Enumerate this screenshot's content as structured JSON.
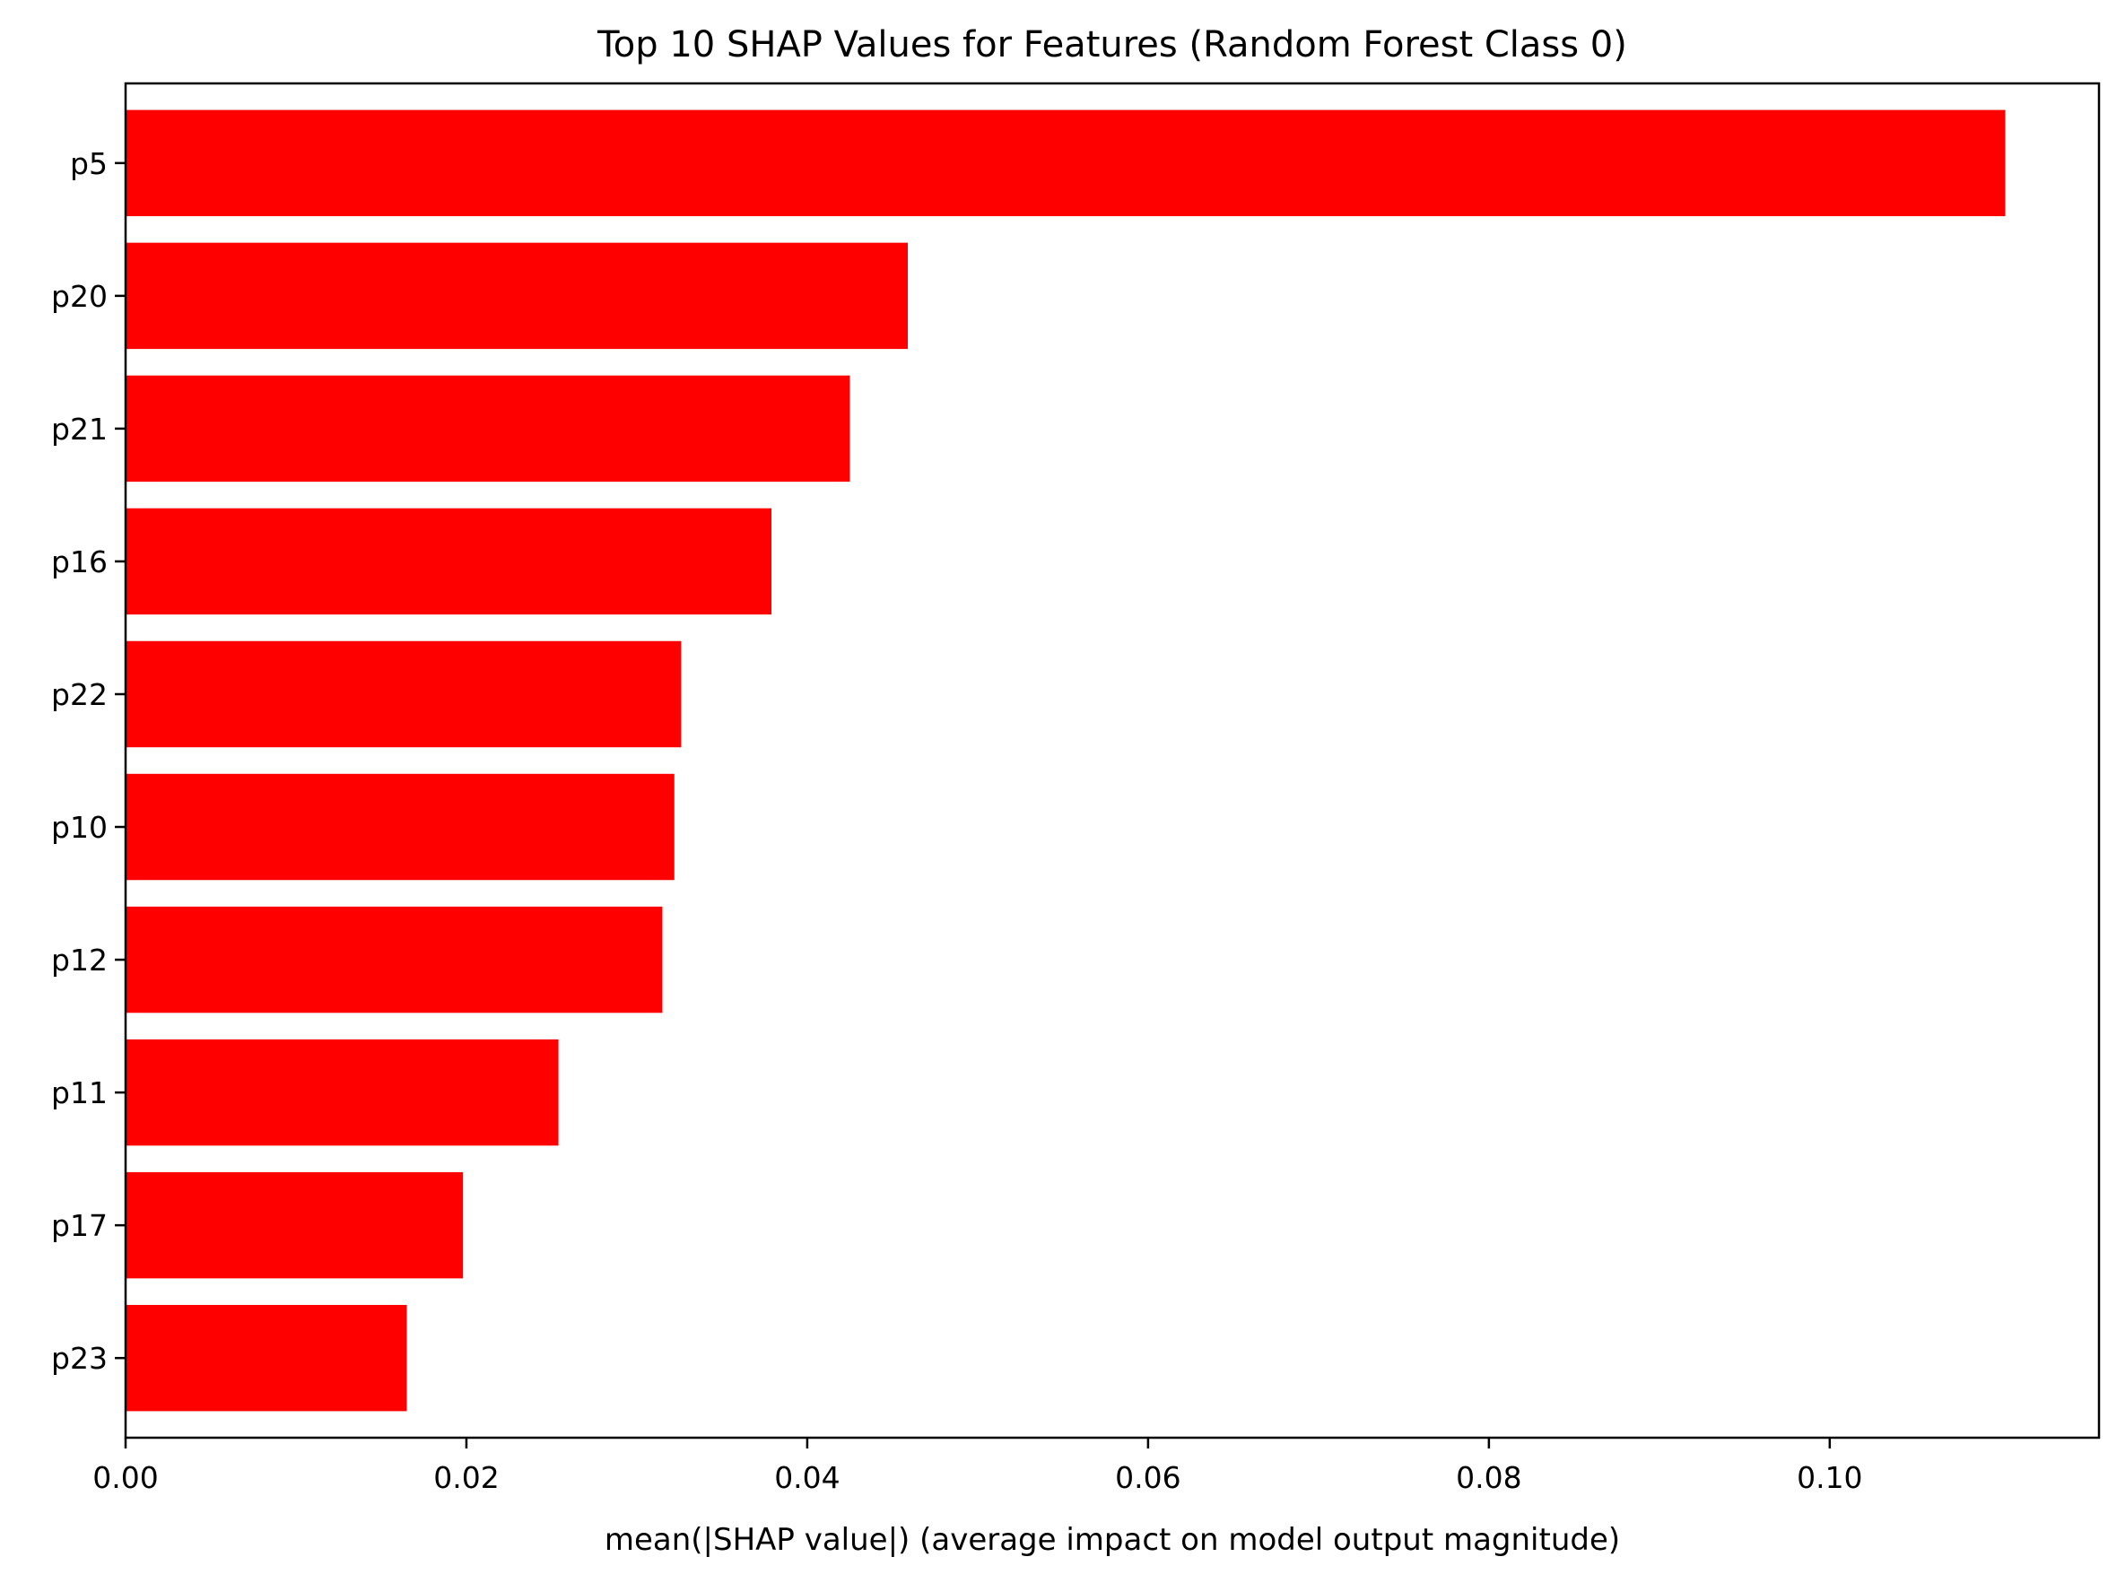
{
  "chart_data": {
    "type": "bar",
    "orientation": "horizontal",
    "title": "Top 10 SHAP Values for Features (Random Forest Class 0)",
    "xlabel": "mean(|SHAP value|) (average impact on model output magnitude)",
    "ylabel": "",
    "categories": [
      "p5",
      "p20",
      "p21",
      "p16",
      "p22",
      "p10",
      "p12",
      "p11",
      "p17",
      "p23"
    ],
    "values": [
      0.1103,
      0.0459,
      0.0425,
      0.0379,
      0.0326,
      0.0322,
      0.0315,
      0.0254,
      0.0198,
      0.0165
    ],
    "xlim": [
      0.0,
      0.1158
    ],
    "xticks": [
      0.0,
      0.02,
      0.04,
      0.06,
      0.08,
      0.1
    ],
    "xtick_labels": [
      "0.00",
      "0.02",
      "0.04",
      "0.06",
      "0.08",
      "0.10"
    ],
    "bar_color": "#ff0000",
    "grid": false,
    "legend": "none"
  }
}
